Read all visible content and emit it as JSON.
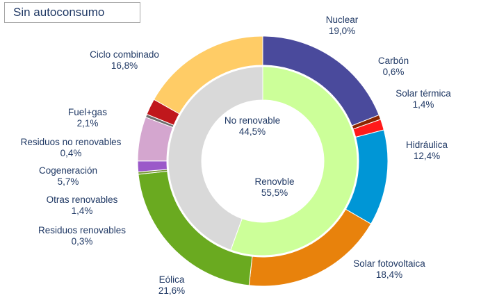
{
  "header": {
    "title": "Sin autoconsumo"
  },
  "chart_data": {
    "type": "pie",
    "variant": "nested-donut",
    "inner_ring": {
      "slices": [
        {
          "label": "Renovble",
          "value": 55.5,
          "value_text": "55,5%",
          "color": "#ccff99"
        },
        {
          "label": "No renovable",
          "value": 44.5,
          "value_text": "44,5%",
          "color": "#d9d9d9"
        }
      ]
    },
    "outer_ring": {
      "slices": [
        {
          "label": "Nuclear",
          "value": 19.0,
          "value_text": "19,0%",
          "color": "#4a4a9c"
        },
        {
          "label": "Carbón",
          "value": 0.6,
          "value_text": "0,6%",
          "color": "#8b2500"
        },
        {
          "label": "Solar térmica",
          "value": 1.4,
          "value_text": "1,4%",
          "color": "#ff1a1a"
        },
        {
          "label": "Hidráulica",
          "value": 12.4,
          "value_text": "12,4%",
          "color": "#0096d6"
        },
        {
          "label": "Solar fotovoltaica",
          "value": 18.4,
          "value_text": "18,4%",
          "color": "#e8820c"
        },
        {
          "label": "Eólica",
          "value": 21.6,
          "value_text": "21,6%",
          "color": "#6aaa20"
        },
        {
          "label": "Residuos renovables",
          "value": 0.3,
          "value_text": "0,3%",
          "color": "#7a9a3a"
        },
        {
          "label": "Otras renovables",
          "value": 1.4,
          "value_text": "1,4%",
          "color": "#9b59c9"
        },
        {
          "label": "Cogeneración",
          "value": 5.7,
          "value_text": "5,7%",
          "color": "#d4a6cf"
        },
        {
          "label": "Residuos no renovables",
          "value": 0.4,
          "value_text": "0,4%",
          "color": "#6d6d6d"
        },
        {
          "label": "Fuel+gas",
          "value": 2.1,
          "value_text": "2,1%",
          "color": "#c0171c"
        },
        {
          "label": "Ciclo combinado",
          "value": 16.8,
          "value_text": "16,8%",
          "color": "#ffcc66"
        }
      ]
    },
    "legend": "none",
    "start_angle_deg": 0
  }
}
